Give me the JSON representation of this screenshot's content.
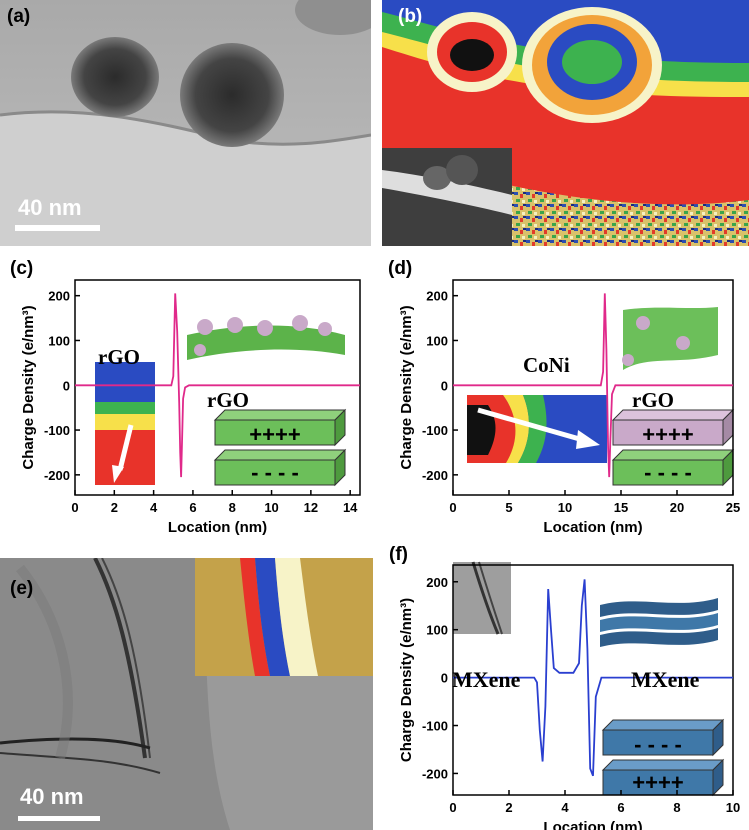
{
  "panels": {
    "a": {
      "label": "(a)",
      "scale_bar": "40 nm"
    },
    "b": {
      "label": "(b)"
    },
    "c": {
      "label": "(c)",
      "left_material": "rGO",
      "right_material": "rGO",
      "stack_top": "++++",
      "stack_bottom": "- - - -"
    },
    "d": {
      "label": "(d)",
      "left_material": "CoNi",
      "right_material": "rGO",
      "stack_top": "++++",
      "stack_bottom": "- - - -"
    },
    "e": {
      "label": "(e)",
      "scale_bar": "40 nm"
    },
    "f": {
      "label": "(f)",
      "left_material": "MXene",
      "right_material": "MXene",
      "stack_top": "- - - -",
      "stack_bottom": "++++"
    }
  },
  "colors": {
    "line_c": "#e0298a",
    "line_d": "#e0298a",
    "line_f": "#2a3fd0",
    "green_block": "#6cbf5a",
    "purple_block": "#c9a9c9",
    "blue_block": "#3f78a8"
  },
  "chart_data": [
    {
      "id": "c",
      "type": "line",
      "xlabel": "Location (nm)",
      "ylabel": "Charge Density (e/nm³)",
      "xlim": [
        0,
        14.5
      ],
      "ylim": [
        -245,
        235
      ],
      "xticks": [
        0,
        2,
        4,
        6,
        8,
        10,
        12,
        14
      ],
      "yticks": [
        -200,
        -100,
        0,
        100,
        200
      ],
      "x": [
        0,
        4.9,
        5.0,
        5.1,
        5.2,
        5.3,
        5.35,
        5.4,
        5.45,
        5.5,
        5.6,
        5.8,
        14.5
      ],
      "y": [
        0,
        0,
        20,
        205,
        120,
        -40,
        -150,
        -205,
        -120,
        -30,
        -5,
        0,
        0
      ]
    },
    {
      "id": "d",
      "type": "line",
      "xlabel": "Location (nm)",
      "ylabel": "Charge Density (e/nm³)",
      "xlim": [
        0,
        25
      ],
      "ylim": [
        -245,
        235
      ],
      "xticks": [
        0,
        5,
        10,
        15,
        20,
        25
      ],
      "yticks": [
        -200,
        -100,
        0,
        100,
        200
      ],
      "x": [
        0,
        13.2,
        13.4,
        13.55,
        13.7,
        13.85,
        13.95,
        14.05,
        14.2,
        14.5,
        25
      ],
      "y": [
        0,
        0,
        30,
        205,
        80,
        -140,
        -205,
        -120,
        -20,
        0,
        0
      ]
    },
    {
      "id": "f",
      "type": "line",
      "xlabel": "Location (nm)",
      "ylabel": "Charge Density (e/nm³)",
      "xlim": [
        0,
        10
      ],
      "ylim": [
        -245,
        235
      ],
      "xticks": [
        0,
        2,
        4,
        6,
        8,
        10
      ],
      "yticks": [
        -200,
        -100,
        0,
        100,
        200
      ],
      "x": [
        0,
        2.9,
        3.0,
        3.1,
        3.2,
        3.3,
        3.4,
        3.5,
        3.6,
        3.8,
        4.3,
        4.5,
        4.6,
        4.7,
        4.8,
        4.9,
        5.0,
        5.1,
        5.3,
        10
      ],
      "y": [
        0,
        0,
        -10,
        -110,
        -175,
        -60,
        185,
        100,
        20,
        10,
        10,
        30,
        150,
        205,
        60,
        -190,
        -205,
        -40,
        0,
        0
      ]
    }
  ]
}
